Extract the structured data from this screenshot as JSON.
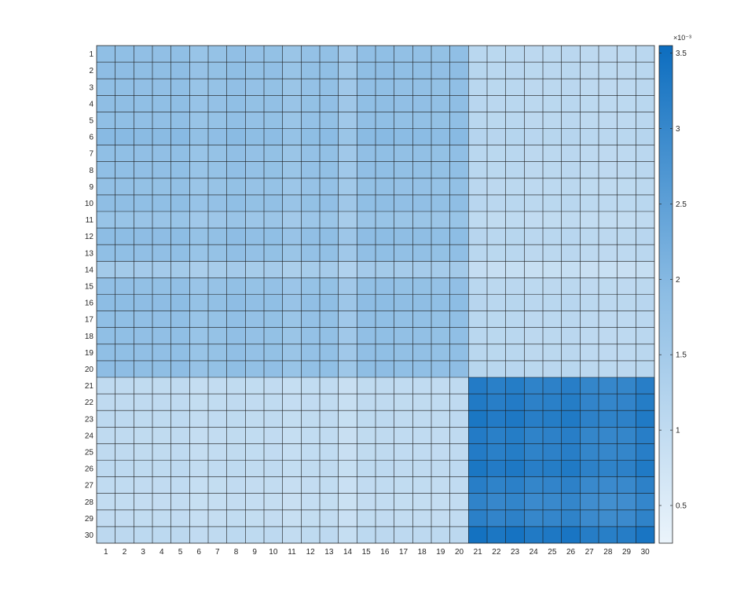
{
  "chart_data": {
    "type": "heatmap",
    "title": "",
    "xlabel": "",
    "ylabel": "",
    "x_categories": [
      "1",
      "2",
      "3",
      "4",
      "5",
      "6",
      "7",
      "8",
      "9",
      "10",
      "11",
      "12",
      "13",
      "14",
      "15",
      "16",
      "17",
      "18",
      "19",
      "20",
      "21",
      "22",
      "23",
      "24",
      "25",
      "26",
      "27",
      "28",
      "29",
      "30"
    ],
    "y_categories": [
      "1",
      "2",
      "3",
      "4",
      "5",
      "6",
      "7",
      "8",
      "9",
      "10",
      "11",
      "12",
      "13",
      "14",
      "15",
      "16",
      "17",
      "18",
      "19",
      "20",
      "21",
      "22",
      "23",
      "24",
      "25",
      "26",
      "27",
      "28",
      "29",
      "30"
    ],
    "block_values": {
      "rows_1_20_cols_1_20": 0.00185,
      "rows_1_20_cols_21_30": 0.00108,
      "rows_21_30_cols_1_20": 0.00102,
      "rows_21_30_cols_21_30": 0.0031
    },
    "row_factors": [
      1.0,
      1.02,
      1.0,
      1.01,
      1.0,
      1.06,
      1.0,
      1.0,
      0.98,
      1.01,
      0.92,
      1.03,
      1.0,
      0.82,
      0.99,
      1.03,
      1.0,
      1.0,
      1.0,
      1.02,
      1.0,
      1.01,
      1.03,
      1.0,
      1.0,
      1.03,
      0.98,
      0.95,
      0.97,
      1.06
    ],
    "col_factors": [
      1.0,
      1.0,
      0.99,
      0.99,
      1.0,
      0.92,
      0.95,
      0.99,
      0.96,
      0.97,
      0.9,
      0.96,
      0.98,
      0.85,
      0.99,
      1.0,
      0.98,
      0.98,
      0.97,
      1.0,
      1.05,
      1.02,
      1.04,
      1.0,
      1.01,
      1.03,
      0.98,
      0.97,
      0.98,
      1.03
    ],
    "colorbar": {
      "exponent_label": "×10⁻³",
      "tick_values": [
        0.5,
        1,
        1.5,
        2,
        2.5,
        3,
        3.5
      ],
      "tick_labels": [
        "0.5",
        "1",
        "1.5",
        "2",
        "2.5",
        "3",
        "3.5"
      ],
      "min": 0.25,
      "max": 3.55,
      "colors": {
        "low": "#ebf4fb",
        "mid": "#8dbde4",
        "high": "#0c6dbf"
      }
    },
    "grid": true
  }
}
